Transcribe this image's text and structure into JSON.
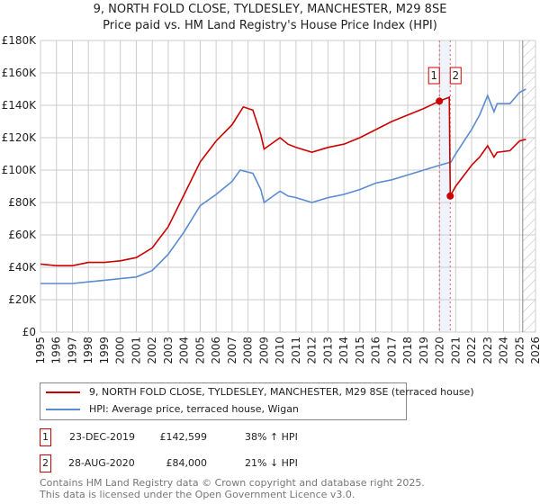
{
  "title": "9, NORTH FOLD CLOSE, TYLDESLEY, MANCHESTER, M29 8SE",
  "subtitle": "Price paid vs. HM Land Registry's House Price Index (HPI)",
  "chart_data": {
    "type": "line",
    "title": "9, NORTH FOLD CLOSE, TYLDESLEY, MANCHESTER, M29 8SE",
    "xlim": [
      1995,
      2026
    ],
    "ylim": [
      0,
      180000
    ],
    "yticks": [
      0,
      20000,
      40000,
      60000,
      80000,
      100000,
      120000,
      140000,
      160000,
      180000
    ],
    "ytick_labels": [
      "£0",
      "£20K",
      "£40K",
      "£60K",
      "£80K",
      "£100K",
      "£120K",
      "£140K",
      "£160K",
      "£180K"
    ],
    "xticks": [
      1995,
      1996,
      1997,
      1998,
      1999,
      2000,
      2001,
      2002,
      2003,
      2004,
      2005,
      2006,
      2007,
      2008,
      2009,
      2010,
      2011,
      2012,
      2013,
      2014,
      2015,
      2016,
      2017,
      2018,
      2019,
      2020,
      2021,
      2022,
      2023,
      2024,
      2025,
      2026
    ],
    "grid": true,
    "future_hatch_from": 2025.2,
    "series": [
      {
        "name": "9, NORTH FOLD CLOSE, TYLDESLEY, MANCHESTER, M29 8SE (terraced house)",
        "color": "#cc0000",
        "points": [
          [
            1995,
            42000
          ],
          [
            1996,
            41000
          ],
          [
            1997,
            41000
          ],
          [
            1998,
            43000
          ],
          [
            1999,
            43000
          ],
          [
            2000,
            44000
          ],
          [
            2001,
            46000
          ],
          [
            2002,
            52000
          ],
          [
            2003,
            65000
          ],
          [
            2004,
            85000
          ],
          [
            2005,
            105000
          ],
          [
            2006,
            118000
          ],
          [
            2007,
            128000
          ],
          [
            2007.7,
            139000
          ],
          [
            2008.3,
            137000
          ],
          [
            2008.8,
            122000
          ],
          [
            2009,
            113000
          ],
          [
            2010,
            120000
          ],
          [
            2010.5,
            116000
          ],
          [
            2011,
            114000
          ],
          [
            2012,
            111000
          ],
          [
            2013,
            114000
          ],
          [
            2014,
            116000
          ],
          [
            2015,
            120000
          ],
          [
            2016,
            125000
          ],
          [
            2017,
            130000
          ],
          [
            2018,
            134000
          ],
          [
            2019,
            138000
          ],
          [
            2019.98,
            142599
          ],
          [
            2020.6,
            145000
          ],
          [
            2020.66,
            84000
          ],
          [
            2021,
            90000
          ],
          [
            2022,
            103000
          ],
          [
            2022.5,
            108000
          ],
          [
            2023,
            115000
          ],
          [
            2023.4,
            108000
          ],
          [
            2023.6,
            111000
          ],
          [
            2024.4,
            112000
          ],
          [
            2025,
            118000
          ],
          [
            2025.4,
            119000
          ]
        ]
      },
      {
        "name": "HPI: Average price, terraced house, Wigan",
        "color": "#5b8ccf",
        "points": [
          [
            1995,
            30000
          ],
          [
            1996,
            30000
          ],
          [
            1997,
            30000
          ],
          [
            1998,
            31000
          ],
          [
            1999,
            32000
          ],
          [
            2000,
            33000
          ],
          [
            2001,
            34000
          ],
          [
            2002,
            38000
          ],
          [
            2003,
            48000
          ],
          [
            2004,
            62000
          ],
          [
            2005,
            78000
          ],
          [
            2006,
            85000
          ],
          [
            2007,
            93000
          ],
          [
            2007.5,
            100000
          ],
          [
            2008.3,
            98000
          ],
          [
            2008.8,
            88000
          ],
          [
            2009,
            80000
          ],
          [
            2010,
            87000
          ],
          [
            2010.5,
            84000
          ],
          [
            2011,
            83000
          ],
          [
            2012,
            80000
          ],
          [
            2013,
            83000
          ],
          [
            2014,
            85000
          ],
          [
            2015,
            88000
          ],
          [
            2016,
            92000
          ],
          [
            2017,
            94000
          ],
          [
            2018,
            97000
          ],
          [
            2019,
            100000
          ],
          [
            2020,
            103000
          ],
          [
            2020.7,
            105000
          ],
          [
            2021,
            110000
          ],
          [
            2022,
            125000
          ],
          [
            2022.5,
            134000
          ],
          [
            2023,
            146000
          ],
          [
            2023.4,
            136000
          ],
          [
            2023.6,
            141000
          ],
          [
            2024.4,
            141000
          ],
          [
            2025,
            148000
          ],
          [
            2025.4,
            150000
          ]
        ]
      }
    ],
    "sales": [
      {
        "label": "1",
        "x": 2019.98,
        "value": 142599
      },
      {
        "label": "2",
        "x": 2020.66,
        "value": 84000
      }
    ]
  },
  "legend": {
    "red": "9, NORTH FOLD CLOSE, TYLDESLEY, MANCHESTER, M29 8SE (terraced house)",
    "blue": "HPI: Average price, terraced house, Wigan"
  },
  "transactions": [
    {
      "num": "1",
      "date": "23-DEC-2019",
      "price": "£142,599",
      "hpi": "38% ↑ HPI"
    },
    {
      "num": "2",
      "date": "28-AUG-2020",
      "price": "£84,000",
      "hpi": "21% ↓ HPI"
    }
  ],
  "footer": {
    "line1": "Contains HM Land Registry data © Crown copyright and database right 2025.",
    "line2": "This data is licensed under the Open Government Licence v3.0."
  }
}
